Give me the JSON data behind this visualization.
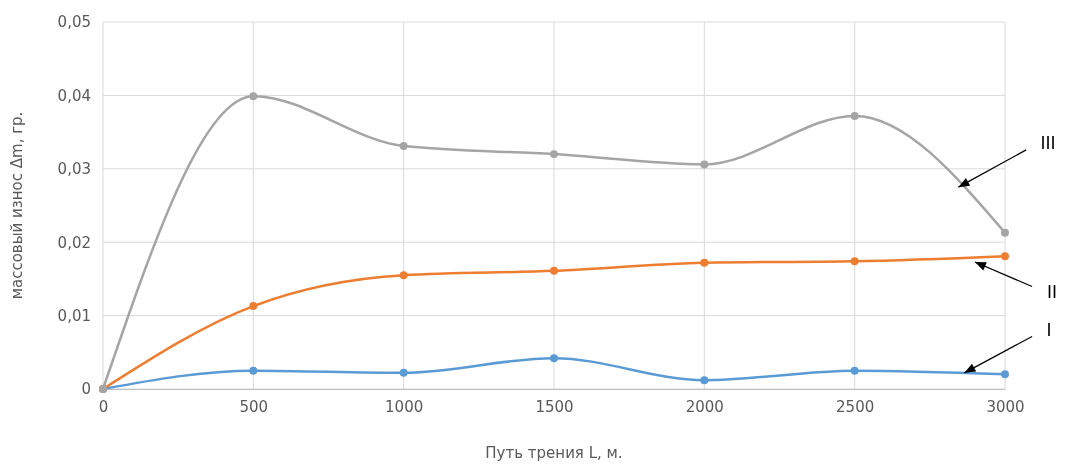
{
  "chart_data": {
    "type": "line",
    "xlabel": "Путь трения L, м.",
    "ylabel": "массовый износ Δm, гр.",
    "x": [
      0,
      500,
      1000,
      1500,
      2000,
      2500,
      3000
    ],
    "series": [
      {
        "color": "#5b9bd5",
        "values": [
          0,
          0.0025,
          0.0022,
          0.0042,
          0.0012,
          0.0025,
          0.002
        ]
      },
      {
        "color": "#ed7d31",
        "values": [
          0,
          0.0113,
          0.0155,
          0.0161,
          0.0172,
          0.0174,
          0.0181
        ]
      },
      {
        "color": "#a5a5a5",
        "values": [
          0,
          0.0399,
          0.0331,
          0.032,
          0.0306,
          0.0372,
          0.0213
        ]
      }
    ],
    "xlim": [
      0,
      3000
    ],
    "xticks": [
      0,
      500,
      1000,
      1500,
      2000,
      2500,
      3000
    ],
    "ylim": [
      0,
      0.05
    ],
    "yticks": [
      {
        "value": 0,
        "label": "0"
      },
      {
        "value": 0.01,
        "label": "0,01"
      },
      {
        "value": 0.02,
        "label": "0,02"
      },
      {
        "value": 0.03,
        "label": "0,03"
      },
      {
        "value": 0.04,
        "label": "0,04"
      },
      {
        "value": 0.05,
        "label": "0,05"
      }
    ],
    "grid": true,
    "marker": "circle",
    "line_style": "solid",
    "annotations": [
      {
        "text": "I",
        "x": 2865,
        "y": 0.0022
      },
      {
        "text": "II",
        "x": 2900,
        "y": 0.0173
      },
      {
        "text": "III",
        "x": 2845,
        "y": 0.0275
      }
    ]
  }
}
